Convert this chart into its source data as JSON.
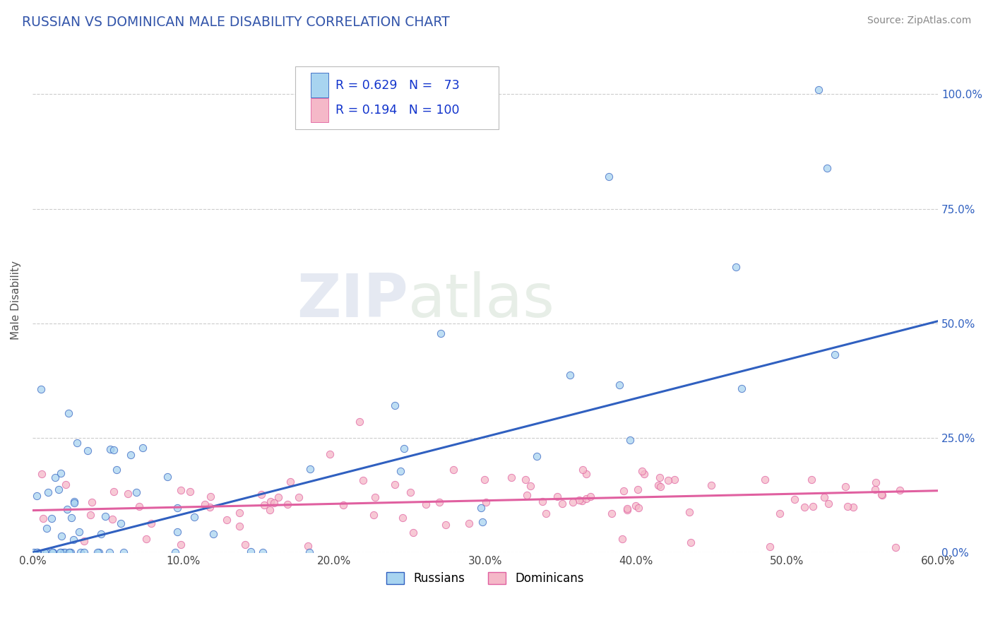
{
  "title": "RUSSIAN VS DOMINICAN MALE DISABILITY CORRELATION CHART",
  "source": "Source: ZipAtlas.com",
  "ylabel_label": "Male Disability",
  "xlim": [
    0.0,
    0.6
  ],
  "ylim": [
    0.0,
    1.1
  ],
  "russian_R": 0.629,
  "russian_N": 73,
  "dominican_R": 0.194,
  "dominican_N": 100,
  "russian_color": "#a8d4f0",
  "dominican_color": "#f5b8c8",
  "russian_line_color": "#3060c0",
  "dominican_line_color": "#e060a0",
  "watermark_zip": "ZIP",
  "watermark_atlas": "atlas",
  "legend_labels": [
    "Russians",
    "Dominicans"
  ],
  "background_color": "#ffffff",
  "grid_color": "#cccccc",
  "title_color": "#3355aa",
  "source_color": "#888888",
  "tick_color": "#3060c0",
  "russian_line_x0": 0.0,
  "russian_line_y0": 0.0,
  "russian_line_x1": 0.6,
  "russian_line_y1": 0.505,
  "dominican_line_x0": 0.0,
  "dominican_line_y0": 0.092,
  "dominican_line_x1": 0.6,
  "dominican_line_y1": 0.135
}
